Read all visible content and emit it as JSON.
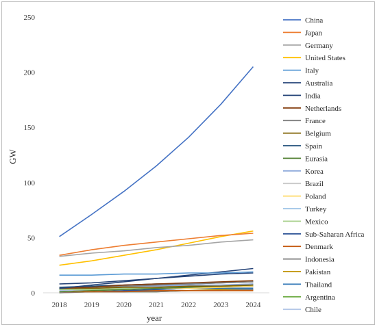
{
  "chart_data": {
    "type": "line",
    "xlabel": "year",
    "ylabel": "GW",
    "ylim": [
      0,
      250
    ],
    "yticks": [
      0,
      50,
      100,
      150,
      200,
      250
    ],
    "x": [
      "2018",
      "2019",
      "2020",
      "2021",
      "2022",
      "2023",
      "2024"
    ],
    "grid": false,
    "legend_position": "right",
    "series": [
      {
        "name": "China",
        "color": "#4472C4",
        "values": [
          51,
          71,
          92,
          115,
          141,
          171,
          205
        ]
      },
      {
        "name": "Japan",
        "color": "#ED7D31",
        "values": [
          34,
          39,
          43,
          46,
          49,
          52,
          54
        ]
      },
      {
        "name": "Germany",
        "color": "#A5A5A5",
        "values": [
          33,
          36,
          38,
          41,
          43,
          46,
          48
        ]
      },
      {
        "name": "United States",
        "color": "#FFC000",
        "values": [
          25,
          29,
          34,
          39,
          45,
          51,
          56
        ]
      },
      {
        "name": "Italy",
        "color": "#5B9BD5",
        "values": [
          16,
          16,
          17,
          17,
          18,
          18,
          19
        ]
      },
      {
        "name": "Australia",
        "color": "#264478",
        "values": [
          8,
          9,
          11,
          13,
          15,
          17,
          18
        ]
      },
      {
        "name": "India",
        "color": "#264478",
        "values": [
          4,
          7,
          10,
          13,
          16,
          19,
          22
        ]
      },
      {
        "name": "Netherlands",
        "color": "#843C0C",
        "values": [
          4,
          5,
          7,
          8,
          9,
          10,
          11
        ]
      },
      {
        "name": "France",
        "color": "#7F7F7F",
        "values": [
          4,
          5,
          6,
          7,
          8,
          9,
          10
        ]
      },
      {
        "name": "Belgium",
        "color": "#7F6000",
        "values": [
          4,
          4,
          5,
          5,
          6,
          6,
          7
        ]
      },
      {
        "name": "Spain",
        "color": "#1F4E79",
        "values": [
          5,
          6,
          7,
          8,
          8,
          9,
          10
        ]
      },
      {
        "name": "Eurasia",
        "color": "#548235",
        "values": [
          1,
          2,
          3,
          4,
          5,
          6,
          7
        ]
      },
      {
        "name": "Korea",
        "color": "#8FAADC",
        "values": [
          4,
          5,
          6,
          6,
          7,
          7,
          8
        ]
      },
      {
        "name": "Brazil",
        "color": "#C9C9C9",
        "values": [
          1,
          2,
          3,
          4,
          5,
          6,
          7
        ]
      },
      {
        "name": "Poland",
        "color": "#FFD966",
        "values": [
          1,
          2,
          3,
          4,
          4,
          5,
          6
        ]
      },
      {
        "name": "Turkey",
        "color": "#9DC3E6",
        "values": [
          5,
          5,
          6,
          6,
          7,
          7,
          8
        ]
      },
      {
        "name": "Mexico",
        "color": "#A9D18E",
        "values": [
          3,
          3,
          4,
          4,
          5,
          5,
          6
        ]
      },
      {
        "name": "Sub-Saharan Africa",
        "color": "#2F5597",
        "values": [
          1,
          2,
          2,
          3,
          4,
          5,
          6
        ]
      },
      {
        "name": "Denmark",
        "color": "#C55A11",
        "values": [
          1,
          1,
          1,
          2,
          2,
          2,
          2
        ]
      },
      {
        "name": "Indonesia",
        "color": "#7B7B7B",
        "values": [
          0,
          1,
          1,
          1,
          2,
          2,
          3
        ]
      },
      {
        "name": "Pakistan",
        "color": "#BF9000",
        "values": [
          1,
          1,
          2,
          2,
          2,
          3,
          3
        ]
      },
      {
        "name": "Thailand",
        "color": "#2E75B6",
        "values": [
          3,
          3,
          3,
          3,
          4,
          4,
          4
        ]
      },
      {
        "name": "Argentina",
        "color": "#70AD47",
        "values": [
          0,
          1,
          1,
          1,
          2,
          2,
          2
        ]
      },
      {
        "name": "Chile",
        "color": "#B4C7E7",
        "values": [
          2,
          2,
          3,
          3,
          4,
          4,
          5
        ]
      }
    ]
  }
}
